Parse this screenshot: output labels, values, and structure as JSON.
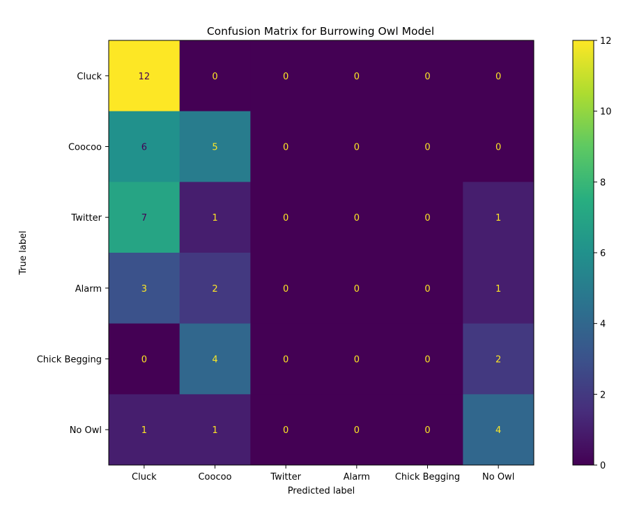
{
  "chart_data": {
    "type": "heatmap",
    "title": "Confusion Matrix for Burrowing Owl Model",
    "xlabel": "Predicted label",
    "ylabel": "True label",
    "x_categories": [
      "Cluck",
      "Coocoo",
      "Twitter",
      "Alarm",
      "Chick Begging",
      "No Owl"
    ],
    "y_categories": [
      "Cluck",
      "Coocoo",
      "Twitter",
      "Alarm",
      "Chick Begging",
      "No Owl"
    ],
    "values": [
      [
        12,
        0,
        0,
        0,
        0,
        0
      ],
      [
        6,
        5,
        0,
        0,
        0,
        0
      ],
      [
        7,
        1,
        0,
        0,
        0,
        1
      ],
      [
        3,
        2,
        0,
        0,
        0,
        1
      ],
      [
        0,
        4,
        0,
        0,
        0,
        2
      ],
      [
        1,
        1,
        0,
        0,
        0,
        4
      ]
    ],
    "colorbar": {
      "min": 0,
      "max": 12,
      "ticks": [
        "0",
        "2",
        "4",
        "6",
        "8",
        "10",
        "12"
      ],
      "colormap": "viridis"
    },
    "text_colors": {
      "light": "#fde725",
      "dark": "#440154"
    }
  }
}
